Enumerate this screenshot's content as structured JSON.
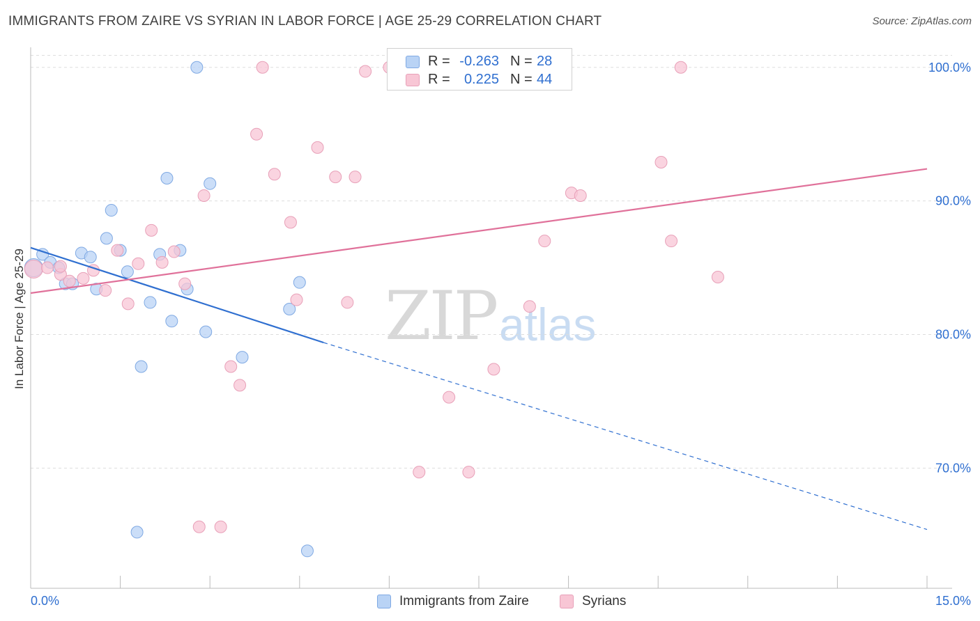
{
  "header": {
    "title": "IMMIGRANTS FROM ZAIRE VS SYRIAN IN LABOR FORCE | AGE 25-29 CORRELATION CHART",
    "source": "Source: ZipAtlas.com"
  },
  "watermark": {
    "zip": "ZIP",
    "atlas": "atlas"
  },
  "legend_stats": [
    {
      "r_label": "R =",
      "r_value": "-0.263",
      "n_label": "N =",
      "n_value": "28"
    },
    {
      "r_label": "R =",
      "r_value": "0.225",
      "n_label": "N =",
      "n_value": "44"
    }
  ],
  "colors": {
    "blue_fill": "#b9d3f5",
    "blue_stroke": "#7fa9e3",
    "blue_line": "#2f6fd0",
    "pink_fill": "#f8c6d5",
    "pink_stroke": "#e8a0b8",
    "pink_line": "#e0719a",
    "axis_text": "#2f6fd0",
    "grid": "#dddddd"
  },
  "chart_data": {
    "type": "scatter",
    "title": "IMMIGRANTS FROM ZAIRE VS SYRIAN IN LABOR FORCE | AGE 25-29 CORRELATION CHART",
    "xlabel": "",
    "ylabel": "In Labor Force | Age 25-29",
    "xlim": [
      0,
      15
    ],
    "ylim": [
      61,
      101.5
    ],
    "x_tick_labels": [
      "0.0%",
      "15.0%"
    ],
    "y_ticks": [
      70,
      80,
      90,
      100
    ],
    "y_tick_labels": [
      "70.0%",
      "80.0%",
      "90.0%",
      "100.0%"
    ],
    "grid": true,
    "legend_position": "bottom",
    "series": [
      {
        "name": "Immigrants from Zaire",
        "color": "#b9d3f5",
        "points": [
          [
            0.05,
            85.0
          ],
          [
            0.2,
            86.0
          ],
          [
            0.33,
            85.4
          ],
          [
            0.47,
            85.0
          ],
          [
            0.58,
            83.8
          ],
          [
            0.7,
            83.8
          ],
          [
            0.85,
            86.1
          ],
          [
            1.0,
            85.8
          ],
          [
            1.1,
            83.4
          ],
          [
            1.27,
            87.2
          ],
          [
            1.35,
            89.3
          ],
          [
            1.5,
            86.3
          ],
          [
            1.62,
            84.7
          ],
          [
            1.78,
            65.2
          ],
          [
            1.85,
            77.6
          ],
          [
            2.0,
            82.4
          ],
          [
            2.16,
            86.0
          ],
          [
            2.28,
            91.7
          ],
          [
            2.36,
            81.0
          ],
          [
            2.5,
            86.3
          ],
          [
            2.62,
            83.4
          ],
          [
            2.78,
            100.0
          ],
          [
            2.93,
            80.2
          ],
          [
            3.0,
            91.3
          ],
          [
            3.54,
            78.3
          ],
          [
            4.33,
            81.9
          ],
          [
            4.5,
            83.9
          ],
          [
            4.63,
            63.8
          ]
        ],
        "trend": {
          "x": [
            0.0,
            4.9
          ],
          "y": [
            86.5,
            79.4
          ],
          "dashed_to": [
            15.0,
            65.4
          ]
        }
      },
      {
        "name": "Syrians",
        "color": "#f8c6d5",
        "points": [
          [
            0.05,
            84.9
          ],
          [
            0.28,
            85.0
          ],
          [
            0.5,
            84.5
          ],
          [
            0.65,
            84.0
          ],
          [
            0.88,
            84.2
          ],
          [
            1.05,
            84.8
          ],
          [
            1.25,
            83.3
          ],
          [
            1.45,
            86.3
          ],
          [
            1.63,
            82.3
          ],
          [
            1.8,
            85.3
          ],
          [
            2.02,
            87.8
          ],
          [
            2.2,
            85.4
          ],
          [
            2.4,
            86.2
          ],
          [
            2.58,
            83.8
          ],
          [
            2.82,
            65.6
          ],
          [
            2.9,
            90.4
          ],
          [
            3.18,
            65.6
          ],
          [
            3.35,
            77.6
          ],
          [
            3.5,
            76.2
          ],
          [
            3.78,
            95.0
          ],
          [
            3.88,
            100.0
          ],
          [
            4.08,
            92.0
          ],
          [
            4.35,
            88.4
          ],
          [
            4.45,
            82.6
          ],
          [
            4.8,
            94.0
          ],
          [
            5.1,
            91.8
          ],
          [
            5.3,
            82.4
          ],
          [
            5.43,
            91.8
          ],
          [
            5.6,
            99.7
          ],
          [
            6.0,
            100.0
          ],
          [
            6.5,
            69.7
          ],
          [
            7.0,
            75.3
          ],
          [
            7.33,
            69.7
          ],
          [
            7.75,
            77.4
          ],
          [
            8.35,
            82.1
          ],
          [
            8.6,
            87.0
          ],
          [
            8.88,
            100.0
          ],
          [
            9.05,
            90.6
          ],
          [
            9.2,
            90.4
          ],
          [
            10.55,
            92.9
          ],
          [
            10.72,
            87.0
          ],
          [
            10.88,
            100.0
          ],
          [
            11.5,
            84.3
          ],
          [
            0.5,
            85.1
          ]
        ],
        "trend": {
          "x": [
            0.0,
            15.0
          ],
          "y": [
            83.1,
            92.4
          ]
        }
      }
    ]
  }
}
